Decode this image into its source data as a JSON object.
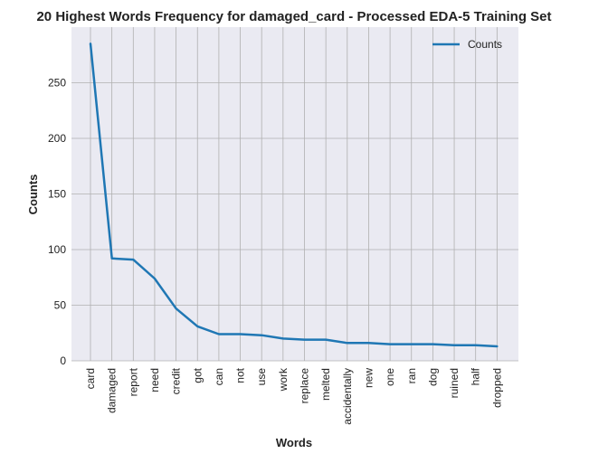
{
  "chart_data": {
    "type": "line",
    "title": "20 Highest Words Frequency for damaged_card - Processed EDA-5 Training Set",
    "xlabel": "Words",
    "ylabel": "Counts",
    "categories": [
      "card",
      "damaged",
      "report",
      "need",
      "credit",
      "got",
      "can",
      "not",
      "use",
      "work",
      "replace",
      "melted",
      "accidentally",
      "new",
      "one",
      "ran",
      "dog",
      "ruined",
      "half",
      "dropped"
    ],
    "series": [
      {
        "name": "Counts",
        "color": "#1f77b4",
        "values": [
          285,
          92,
          91,
          74,
          47,
          31,
          24,
          24,
          23,
          20,
          19,
          19,
          16,
          16,
          15,
          15,
          15,
          14,
          14,
          13
        ]
      }
    ],
    "ylim": [
      0,
      300
    ],
    "yticks": [
      0,
      50,
      100,
      150,
      200,
      250
    ],
    "grid": true,
    "legend_position": "top-right",
    "background_color": "#eaeaf2",
    "grid_color": "#b0b0b0"
  }
}
